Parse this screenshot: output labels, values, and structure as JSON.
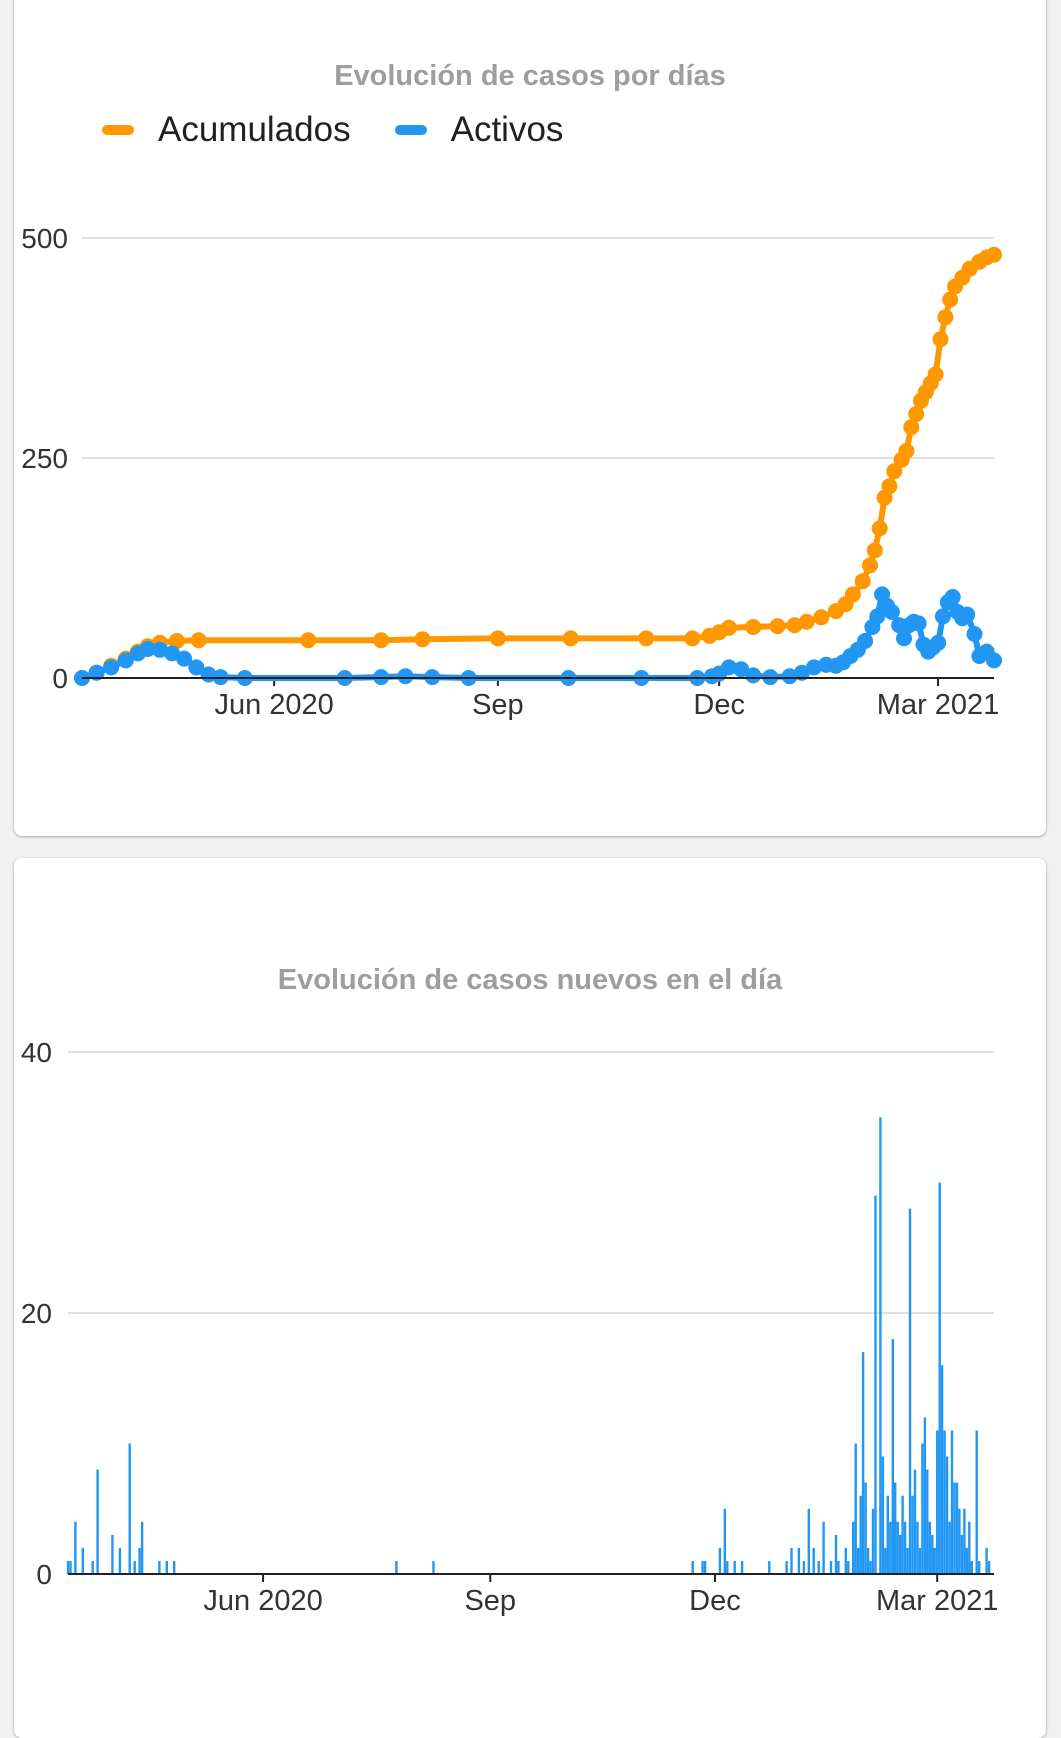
{
  "colors": {
    "acumulados": "#ff9800",
    "activos": "#2196f3",
    "grid": "#e0e0e0",
    "axis": "#212121",
    "title": "#9e9e9e"
  },
  "chart_data": [
    {
      "type": "line",
      "title": "Evolución de casos por días",
      "xlabel": "",
      "ylabel": "",
      "x_ticks": [
        {
          "date": "2020-06-01",
          "label": "Jun 2020"
        },
        {
          "date": "2020-09-01",
          "label": "Sep"
        },
        {
          "date": "2020-12-01",
          "label": "Dec"
        },
        {
          "date": "2021-03-01",
          "label": "Mar 2021"
        }
      ],
      "y_ticks": [
        0,
        250,
        500
      ],
      "ylim": [
        0,
        500
      ],
      "xlim": [
        "2020-03-14",
        "2021-03-24"
      ],
      "grid": true,
      "legend": "top-left",
      "series": [
        {
          "name": "Acumulados",
          "points": [
            [
              "2020-03-14",
              0
            ],
            [
              "2020-03-20",
              6
            ],
            [
              "2020-03-26",
              14
            ],
            [
              "2020-04-01",
              22
            ],
            [
              "2020-04-06",
              30
            ],
            [
              "2020-04-10",
              36
            ],
            [
              "2020-04-15",
              40
            ],
            [
              "2020-04-22",
              42
            ],
            [
              "2020-05-01",
              43
            ],
            [
              "2020-06-15",
              43
            ],
            [
              "2020-07-15",
              43
            ],
            [
              "2020-08-01",
              44
            ],
            [
              "2020-09-01",
              45
            ],
            [
              "2020-10-01",
              45
            ],
            [
              "2020-11-01",
              45
            ],
            [
              "2020-11-20",
              45
            ],
            [
              "2020-11-27",
              48
            ],
            [
              "2020-12-01",
              52
            ],
            [
              "2020-12-05",
              57
            ],
            [
              "2020-12-15",
              58
            ],
            [
              "2020-12-25",
              59
            ],
            [
              "2021-01-01",
              60
            ],
            [
              "2021-01-06",
              64
            ],
            [
              "2021-01-12",
              69
            ],
            [
              "2021-01-18",
              76
            ],
            [
              "2021-01-22",
              84
            ],
            [
              "2021-01-25",
              95
            ],
            [
              "2021-01-29",
              110
            ],
            [
              "2021-02-01",
              128
            ],
            [
              "2021-02-03",
              145
            ],
            [
              "2021-02-05",
              170
            ],
            [
              "2021-02-07",
              205
            ],
            [
              "2021-02-09",
              218
            ],
            [
              "2021-02-11",
              235
            ],
            [
              "2021-02-14",
              248
            ],
            [
              "2021-02-16",
              258
            ],
            [
              "2021-02-18",
              285
            ],
            [
              "2021-02-20",
              300
            ],
            [
              "2021-02-22",
              315
            ],
            [
              "2021-02-24",
              325
            ],
            [
              "2021-02-26",
              335
            ],
            [
              "2021-02-28",
              345
            ],
            [
              "2021-03-02",
              385
            ],
            [
              "2021-03-04",
              410
            ],
            [
              "2021-03-06",
              430
            ],
            [
              "2021-03-08",
              445
            ],
            [
              "2021-03-11",
              455
            ],
            [
              "2021-03-14",
              465
            ],
            [
              "2021-03-18",
              473
            ],
            [
              "2021-03-21",
              478
            ],
            [
              "2021-03-24",
              481
            ]
          ]
        },
        {
          "name": "Activos",
          "points": [
            [
              "2020-03-14",
              0
            ],
            [
              "2020-03-20",
              6
            ],
            [
              "2020-03-26",
              12
            ],
            [
              "2020-04-01",
              20
            ],
            [
              "2020-04-06",
              28
            ],
            [
              "2020-04-10",
              33
            ],
            [
              "2020-04-15",
              32
            ],
            [
              "2020-04-20",
              28
            ],
            [
              "2020-04-25",
              22
            ],
            [
              "2020-04-30",
              12
            ],
            [
              "2020-05-05",
              4
            ],
            [
              "2020-05-10",
              1
            ],
            [
              "2020-05-20",
              0
            ],
            [
              "2020-06-30",
              0
            ],
            [
              "2020-07-15",
              1
            ],
            [
              "2020-07-25",
              2
            ],
            [
              "2020-08-05",
              1
            ],
            [
              "2020-08-20",
              0
            ],
            [
              "2020-09-30",
              0
            ],
            [
              "2020-10-30",
              0
            ],
            [
              "2020-11-22",
              0
            ],
            [
              "2020-11-28",
              2
            ],
            [
              "2020-12-01",
              5
            ],
            [
              "2020-12-05",
              12
            ],
            [
              "2020-12-10",
              10
            ],
            [
              "2020-12-15",
              3
            ],
            [
              "2020-12-22",
              1
            ],
            [
              "2020-12-30",
              2
            ],
            [
              "2021-01-04",
              6
            ],
            [
              "2021-01-09",
              12
            ],
            [
              "2021-01-14",
              15
            ],
            [
              "2021-01-18",
              14
            ],
            [
              "2021-01-21",
              18
            ],
            [
              "2021-01-24",
              25
            ],
            [
              "2021-01-27",
              32
            ],
            [
              "2021-01-30",
              42
            ],
            [
              "2021-02-02",
              58
            ],
            [
              "2021-02-04",
              70
            ],
            [
              "2021-02-06",
              95
            ],
            [
              "2021-02-08",
              82
            ],
            [
              "2021-02-10",
              75
            ],
            [
              "2021-02-13",
              60
            ],
            [
              "2021-02-15",
              45
            ],
            [
              "2021-02-17",
              60
            ],
            [
              "2021-02-19",
              64
            ],
            [
              "2021-02-21",
              62
            ],
            [
              "2021-02-23",
              38
            ],
            [
              "2021-02-25",
              30
            ],
            [
              "2021-02-27",
              35
            ],
            [
              "2021-03-01",
              40
            ],
            [
              "2021-03-03",
              70
            ],
            [
              "2021-03-05",
              86
            ],
            [
              "2021-03-07",
              92
            ],
            [
              "2021-03-09",
              75
            ],
            [
              "2021-03-11",
              68
            ],
            [
              "2021-03-13",
              72
            ],
            [
              "2021-03-16",
              50
            ],
            [
              "2021-03-18",
              25
            ],
            [
              "2021-03-21",
              30
            ],
            [
              "2021-03-24",
              20
            ]
          ]
        }
      ]
    },
    {
      "type": "bar",
      "title": "Evolución de casos nuevos en el día",
      "xlabel": "",
      "ylabel": "",
      "x_ticks": [
        {
          "date": "2020-06-01",
          "label": "Jun 2020"
        },
        {
          "date": "2020-09-01",
          "label": "Sep"
        },
        {
          "date": "2020-12-01",
          "label": "Dec"
        },
        {
          "date": "2021-03-01",
          "label": "Mar 2021"
        }
      ],
      "y_ticks": [
        0,
        20,
        40
      ],
      "ylim": [
        0,
        40
      ],
      "xlim": [
        "2020-03-14",
        "2021-03-24"
      ],
      "grid": true,
      "series": [
        {
          "bars": [
            [
              "2020-03-14",
              1
            ],
            [
              "2020-03-15",
              1
            ],
            [
              "2020-03-17",
              4
            ],
            [
              "2020-03-20",
              2
            ],
            [
              "2020-03-24",
              1
            ],
            [
              "2020-03-26",
              8
            ],
            [
              "2020-04-01",
              3
            ],
            [
              "2020-04-04",
              2
            ],
            [
              "2020-04-08",
              10
            ],
            [
              "2020-04-10",
              1
            ],
            [
              "2020-04-12",
              2
            ],
            [
              "2020-04-13",
              4
            ],
            [
              "2020-04-20",
              1
            ],
            [
              "2020-04-23",
              1
            ],
            [
              "2020-04-26",
              1
            ],
            [
              "2020-07-25",
              1
            ],
            [
              "2020-08-09",
              1
            ],
            [
              "2020-11-22",
              1
            ],
            [
              "2020-11-26",
              1
            ],
            [
              "2020-11-27",
              1
            ],
            [
              "2020-12-03",
              2
            ],
            [
              "2020-12-05",
              5
            ],
            [
              "2020-12-06",
              1
            ],
            [
              "2020-12-09",
              1
            ],
            [
              "2020-12-12",
              1
            ],
            [
              "2020-12-23",
              1
            ],
            [
              "2020-12-30",
              1
            ],
            [
              "2021-01-01",
              2
            ],
            [
              "2021-01-04",
              2
            ],
            [
              "2021-01-06",
              1
            ],
            [
              "2021-01-08",
              5
            ],
            [
              "2021-01-10",
              2
            ],
            [
              "2021-01-12",
              1
            ],
            [
              "2021-01-14",
              4
            ],
            [
              "2021-01-17",
              1
            ],
            [
              "2021-01-19",
              3
            ],
            [
              "2021-01-20",
              1
            ],
            [
              "2021-01-23",
              2
            ],
            [
              "2021-01-24",
              1
            ],
            [
              "2021-01-26",
              4
            ],
            [
              "2021-01-27",
              10
            ],
            [
              "2021-01-28",
              2
            ],
            [
              "2021-01-29",
              6
            ],
            [
              "2021-01-30",
              17
            ],
            [
              "2021-01-31",
              7
            ],
            [
              "2021-02-01",
              2
            ],
            [
              "2021-02-02",
              1
            ],
            [
              "2021-02-03",
              5
            ],
            [
              "2021-02-04",
              29
            ],
            [
              "2021-02-06",
              35
            ],
            [
              "2021-02-07",
              9
            ],
            [
              "2021-02-08",
              2
            ],
            [
              "2021-02-09",
              6
            ],
            [
              "2021-02-10",
              4
            ],
            [
              "2021-02-11",
              18
            ],
            [
              "2021-02-12",
              7
            ],
            [
              "2021-02-13",
              4
            ],
            [
              "2021-02-14",
              3
            ],
            [
              "2021-02-15",
              6
            ],
            [
              "2021-02-16",
              4
            ],
            [
              "2021-02-17",
              2
            ],
            [
              "2021-02-18",
              28
            ],
            [
              "2021-02-19",
              6
            ],
            [
              "2021-02-20",
              8
            ],
            [
              "2021-02-21",
              4
            ],
            [
              "2021-02-22",
              2
            ],
            [
              "2021-02-23",
              10
            ],
            [
              "2021-02-24",
              12
            ],
            [
              "2021-02-25",
              8
            ],
            [
              "2021-02-26",
              4
            ],
            [
              "2021-02-27",
              3
            ],
            [
              "2021-02-28",
              2
            ],
            [
              "2021-03-01",
              11
            ],
            [
              "2021-03-02",
              30
            ],
            [
              "2021-03-03",
              16
            ],
            [
              "2021-03-04",
              11
            ],
            [
              "2021-03-05",
              9
            ],
            [
              "2021-03-06",
              4
            ],
            [
              "2021-03-07",
              11
            ],
            [
              "2021-03-08",
              7
            ],
            [
              "2021-03-09",
              7
            ],
            [
              "2021-03-10",
              5
            ],
            [
              "2021-03-11",
              3
            ],
            [
              "2021-03-12",
              5
            ],
            [
              "2021-03-13",
              2
            ],
            [
              "2021-03-14",
              4
            ],
            [
              "2021-03-15",
              1
            ],
            [
              "2021-03-17",
              11
            ],
            [
              "2021-03-18",
              1
            ],
            [
              "2021-03-21",
              2
            ],
            [
              "2021-03-22",
              1
            ]
          ]
        }
      ]
    }
  ]
}
